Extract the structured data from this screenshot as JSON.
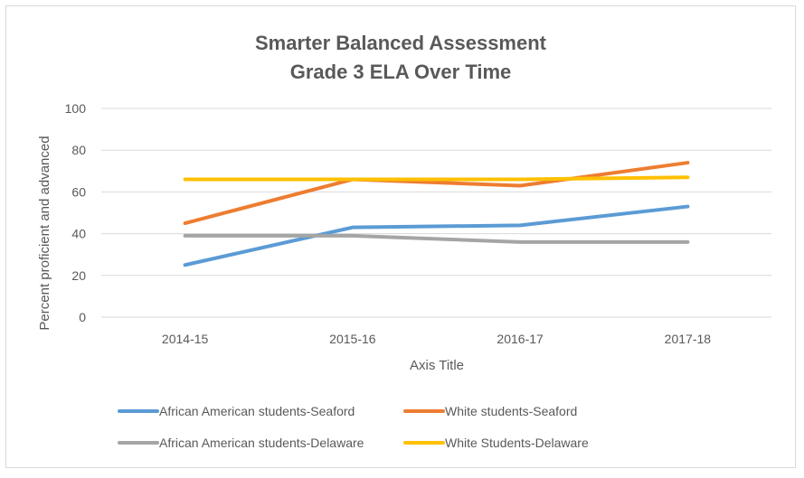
{
  "chart_data": {
    "type": "line",
    "title": [
      "Smarter Balanced Assessment",
      "Grade 3 ELA Over Time"
    ],
    "xlabel": "Axis Title",
    "ylabel": "Percent proficient and advanced",
    "categories": [
      "2014-15",
      "2015-16",
      "2016-17",
      "2017-18"
    ],
    "ylim": [
      0,
      100
    ],
    "yticks": [
      0,
      20,
      40,
      60,
      80,
      100
    ],
    "grid": true,
    "legend_position": "bottom",
    "series": [
      {
        "name": "African American students-Seaford",
        "color": "#5B9BD5",
        "values": [
          25,
          43,
          44,
          53
        ]
      },
      {
        "name": "White students-Seaford",
        "color": "#ED7D31",
        "values": [
          45,
          66,
          63,
          74
        ]
      },
      {
        "name": "African American students-Delaware",
        "color": "#A5A5A5",
        "values": [
          39,
          39,
          36,
          36
        ]
      },
      {
        "name": "White Students-Delaware",
        "color": "#FFC000",
        "values": [
          66,
          66,
          66,
          67
        ]
      }
    ]
  }
}
